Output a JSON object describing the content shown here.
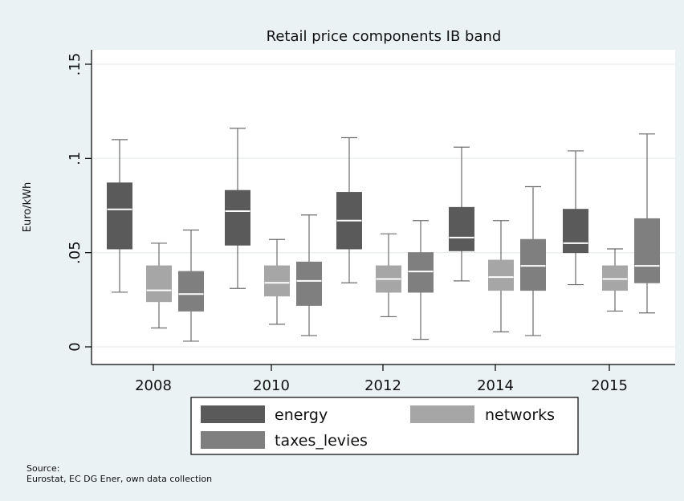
{
  "chart_data": {
    "type": "box",
    "title": "Retail price components IB band",
    "xlabel": "",
    "ylabel": "Euro/kWh",
    "ylim": [
      0,
      0.15
    ],
    "yticks": [
      0,
      0.05,
      0.1,
      0.15
    ],
    "ytick_labels": [
      "0",
      ".05",
      ".1",
      ".15"
    ],
    "grid": true,
    "legend_position": "bottom",
    "categories": [
      "2008",
      "2010",
      "2012",
      "2014",
      "2015"
    ],
    "series": [
      {
        "name": "energy",
        "color": "#5a5a5a",
        "boxes": [
          {
            "min": 0.029,
            "q1": 0.052,
            "median": 0.073,
            "q3": 0.087,
            "max": 0.11
          },
          {
            "min": 0.031,
            "q1": 0.054,
            "median": 0.072,
            "q3": 0.083,
            "max": 0.116
          },
          {
            "min": 0.034,
            "q1": 0.052,
            "median": 0.067,
            "q3": 0.082,
            "max": 0.111
          },
          {
            "min": 0.035,
            "q1": 0.051,
            "median": 0.058,
            "q3": 0.074,
            "max": 0.106
          },
          {
            "min": 0.033,
            "q1": 0.05,
            "median": 0.055,
            "q3": 0.073,
            "max": 0.104
          }
        ]
      },
      {
        "name": "networks",
        "color": "#a6a6a6",
        "boxes": [
          {
            "min": 0.01,
            "q1": 0.024,
            "median": 0.03,
            "q3": 0.043,
            "max": 0.055
          },
          {
            "min": 0.012,
            "q1": 0.027,
            "median": 0.034,
            "q3": 0.043,
            "max": 0.057
          },
          {
            "min": 0.016,
            "q1": 0.029,
            "median": 0.036,
            "q3": 0.043,
            "max": 0.06
          },
          {
            "min": 0.008,
            "q1": 0.03,
            "median": 0.037,
            "q3": 0.046,
            "max": 0.067
          },
          {
            "min": 0.019,
            "q1": 0.03,
            "median": 0.036,
            "q3": 0.043,
            "max": 0.052
          }
        ]
      },
      {
        "name": "taxes_levies",
        "color": "#7f7f7f",
        "boxes": [
          {
            "min": 0.003,
            "q1": 0.019,
            "median": 0.028,
            "q3": 0.04,
            "max": 0.062
          },
          {
            "min": 0.006,
            "q1": 0.022,
            "median": 0.035,
            "q3": 0.045,
            "max": 0.07
          },
          {
            "min": 0.004,
            "q1": 0.029,
            "median": 0.04,
            "q3": 0.05,
            "max": 0.067
          },
          {
            "min": 0.006,
            "q1": 0.03,
            "median": 0.043,
            "q3": 0.057,
            "max": 0.085
          },
          {
            "min": 0.018,
            "q1": 0.034,
            "median": 0.043,
            "q3": 0.068,
            "max": 0.113
          }
        ]
      }
    ]
  },
  "source": {
    "line1": "Source:",
    "line2": "Eurostat, EC DG Ener, own data collection"
  },
  "colors": {
    "background": "#eaf2f3",
    "plot_background": "#ffffff",
    "median_line": "#ffffff",
    "whisker": "#6b6b6b",
    "grid": "#e6eded"
  }
}
